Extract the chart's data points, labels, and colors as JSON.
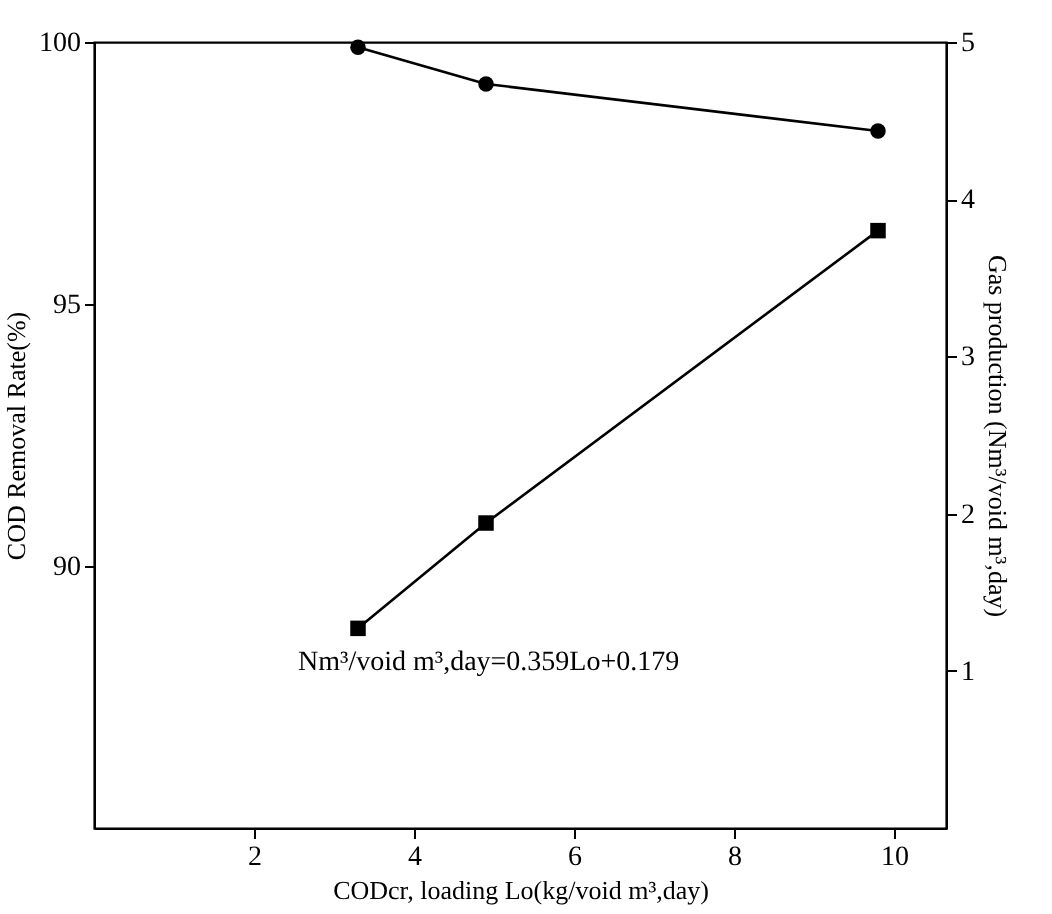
{
  "chart_data": {
    "type": "line",
    "xlabel": "CODcr, loading Lo(kg/void m³,day)",
    "ylabel": "COD Removal Rate(%)",
    "y2label": "Gas production (Nm³/void m³,day)",
    "x": [
      3.3,
      4.9,
      9.8
    ],
    "series": [
      {
        "color": "#000000",
        "marker": "circle",
        "values": [
          99.9,
          99.2,
          98.3
        ]
      },
      {
        "color": "#000000",
        "marker": "square",
        "axis": "y2",
        "values": [
          1.27,
          1.94,
          3.8
        ]
      }
    ],
    "xlim": [
      0,
      10.65
    ],
    "xticks": [
      2,
      4,
      6,
      8,
      10
    ],
    "ylim": [
      85,
      100
    ],
    "yticks": [
      90,
      95,
      100
    ],
    "y2lim": [
      0,
      5
    ],
    "y2ticks": [
      1,
      2,
      3,
      4,
      5
    ],
    "annotations": [
      "Nm³/void m³,day=0.359Lo+0.179"
    ],
    "grid": false
  }
}
